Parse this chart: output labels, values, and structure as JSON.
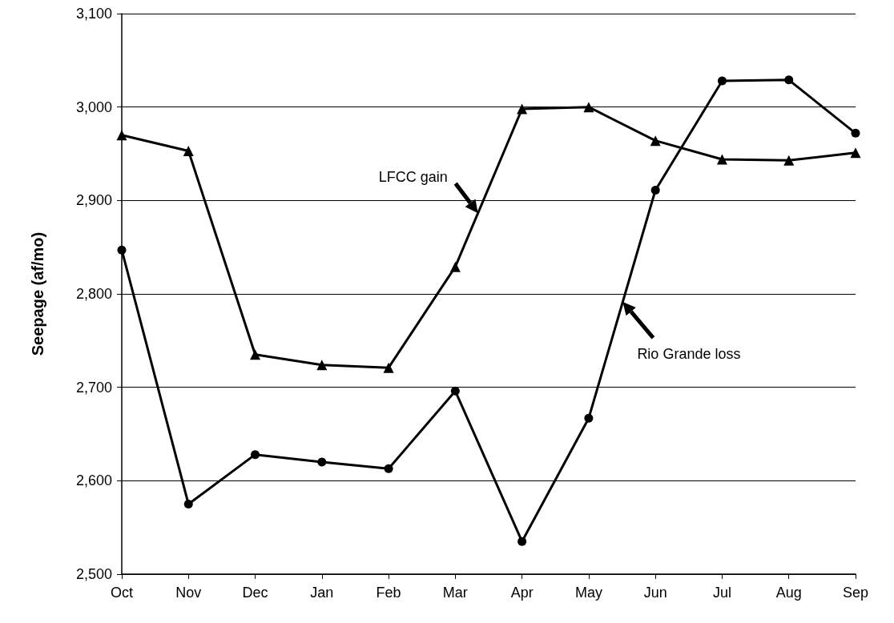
{
  "chart_data": {
    "type": "line",
    "ylabel": "Seepage (af/mo)",
    "categories": [
      "Oct",
      "Nov",
      "Dec",
      "Jan",
      "Feb",
      "Mar",
      "Apr",
      "May",
      "Jun",
      "Jul",
      "Aug",
      "Sep"
    ],
    "series": [
      {
        "name": "LFCC gain",
        "color": "#000000",
        "marker": "triangle",
        "values": [
          2970,
          2953,
          2735,
          2724,
          2721,
          2829,
          2998,
          3000,
          2964,
          2944,
          2943,
          2951
        ]
      },
      {
        "name": "Rio Grande loss",
        "color": "#000000",
        "marker": "circle",
        "values": [
          2847,
          2575,
          2628,
          2620,
          2613,
          2696,
          2535,
          2667,
          2911,
          3028,
          3029,
          2972
        ]
      }
    ],
    "ylim": [
      2500,
      3100
    ],
    "yticks": [
      {
        "value": 2500,
        "label": "2,500"
      },
      {
        "value": 2600,
        "label": "2,600"
      },
      {
        "value": 2700,
        "label": "2,700"
      },
      {
        "value": 2800,
        "label": "2,800"
      },
      {
        "value": 2900,
        "label": "2,900"
      },
      {
        "value": 3000,
        "label": "3,000"
      },
      {
        "value": 3100,
        "label": "3,100"
      }
    ],
    "grid": "y",
    "line_style": "solid"
  }
}
